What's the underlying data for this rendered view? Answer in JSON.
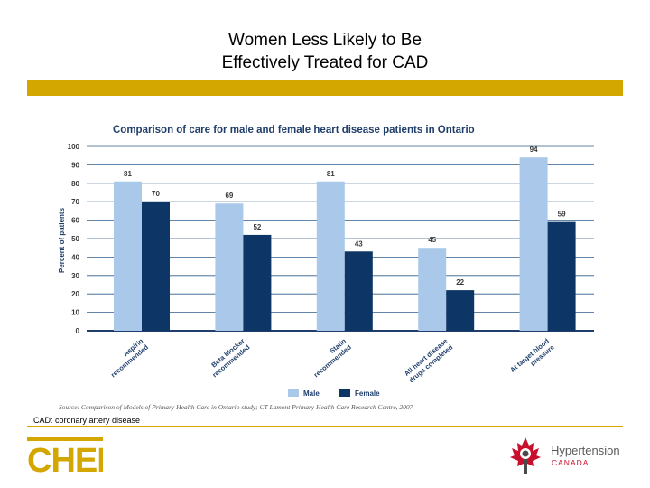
{
  "slide": {
    "title_line1": "Women Less Likely to Be",
    "title_line2": "Effectively Treated for CAD",
    "footnote": "CAD: coronary artery disease"
  },
  "colors": {
    "accent": "#d4a600",
    "male": "#a9c8ea",
    "female": "#0d3565",
    "title_blue": "#1f3e6b"
  },
  "chart_data": {
    "type": "bar",
    "title": "Comparison of care for male and female heart disease patients in Ontario",
    "ylabel": "Percent of patients",
    "xlabel": "",
    "ylim": [
      0,
      100
    ],
    "yticks": [
      "0",
      "10",
      "20",
      "30",
      "40",
      "50",
      "60",
      "70",
      "80",
      "90",
      "100"
    ],
    "categories": [
      [
        "Aspirin",
        "recommended"
      ],
      [
        "Beta blocker",
        "recommended"
      ],
      [
        "Statin",
        "recommended"
      ],
      [
        "All heart disease",
        "drugs completed"
      ],
      [
        "At target blood",
        "pressure"
      ]
    ],
    "series": [
      {
        "name": "Male",
        "values": [
          81,
          69,
          81,
          45,
          94
        ]
      },
      {
        "name": "Female",
        "values": [
          70,
          52,
          43,
          22,
          59
        ]
      }
    ],
    "grid": true,
    "legend": "bottom-center",
    "source": "Source: Comparison of Models of Primary Health Care in Ontario study; CT Lamont Primary Health Care Research Centre, 2007"
  },
  "logos": {
    "chep": "CHEP",
    "hypertension_name": "Hypertension",
    "hypertension_country": "CANADA"
  }
}
